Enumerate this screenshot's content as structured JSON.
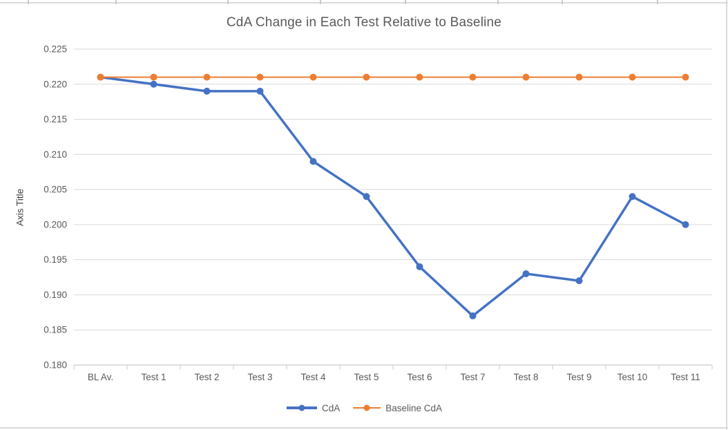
{
  "chart_data": {
    "type": "line",
    "title": "CdA Change in Each Test Relative to Baseline",
    "ylabel": "Axis Title",
    "xlabel": "",
    "categories": [
      "BL Av.",
      "Test 1",
      "Test 2",
      "Test 3",
      "Test 4",
      "Test 5",
      "Test 6",
      "Test 7",
      "Test 8",
      "Test 9",
      "Test 10",
      "Test 11"
    ],
    "series": [
      {
        "name": "CdA",
        "color": "#4472C4",
        "values": [
          0.221,
          0.22,
          0.219,
          0.219,
          0.209,
          0.204,
          0.194,
          0.187,
          0.193,
          0.192,
          0.204,
          0.2
        ]
      },
      {
        "name": "Baseline CdA",
        "color": "#ED7D31",
        "values": [
          0.221,
          0.221,
          0.221,
          0.221,
          0.221,
          0.221,
          0.221,
          0.221,
          0.221,
          0.221,
          0.221,
          0.221
        ]
      }
    ],
    "ylim": [
      0.18,
      0.225
    ],
    "ytick_step": 0.005,
    "ytick_decimals": 3,
    "grid": true,
    "legend_position": "bottom",
    "gridline_color": "#D9D9D9",
    "axis_color": "#BFBFBF",
    "tick_color": "#C9C9C9",
    "label_color": "#595959"
  }
}
